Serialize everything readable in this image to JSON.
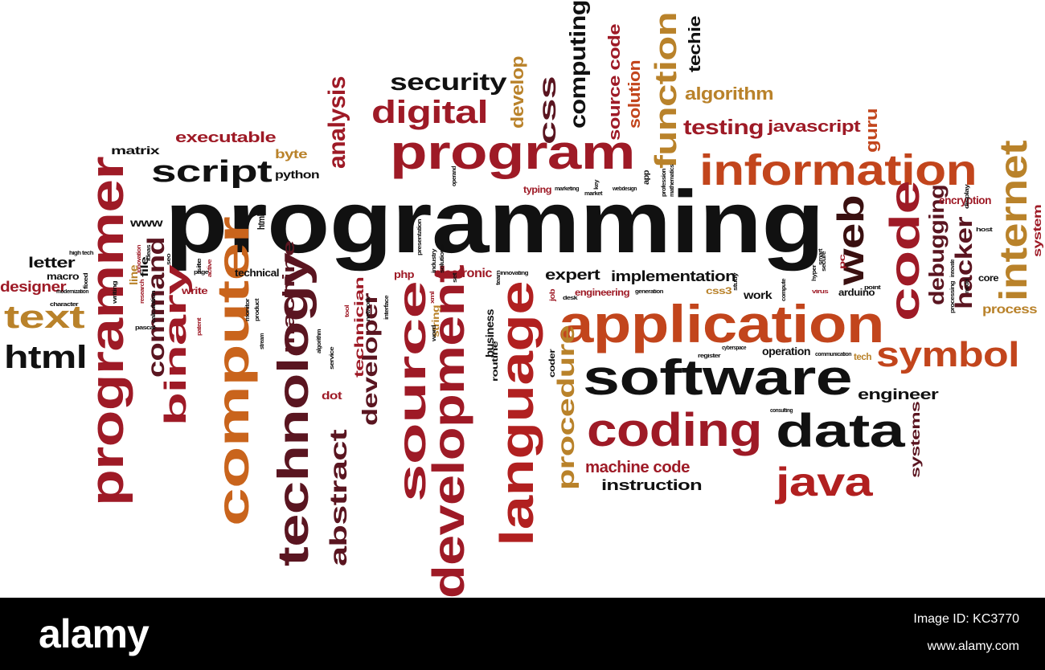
{
  "colors": {
    "black": "#111111",
    "darkbrown": "#3a1010",
    "maroon": "#5a1520",
    "crimson": "#9e1a26",
    "red": "#b12020",
    "orangered": "#c2451c",
    "orange": "#c9641c",
    "gold": "#b9822a"
  },
  "words": [
    {
      "text": "programming",
      "color": "black"
    },
    {
      "text": "application",
      "color": "orangered"
    },
    {
      "text": "software",
      "color": "black"
    },
    {
      "text": "information",
      "color": "orangered"
    },
    {
      "text": "program",
      "color": "crimson"
    },
    {
      "text": "coding",
      "color": "crimson"
    },
    {
      "text": "data",
      "color": "black"
    },
    {
      "text": "java",
      "color": "red"
    },
    {
      "text": "symbol",
      "color": "orangered"
    },
    {
      "text": "code",
      "color": "crimson"
    },
    {
      "text": "internet",
      "color": "gold"
    },
    {
      "text": "web",
      "color": "darkbrown"
    },
    {
      "text": "hacker",
      "color": "maroon"
    },
    {
      "text": "debugging",
      "color": "maroon"
    },
    {
      "text": "digital",
      "color": "crimson"
    },
    {
      "text": "security",
      "color": "black"
    },
    {
      "text": "script",
      "color": "black"
    },
    {
      "text": "text",
      "color": "gold"
    },
    {
      "text": "html",
      "color": "black"
    },
    {
      "text": "programmer",
      "color": "crimson"
    },
    {
      "text": "computer",
      "color": "orange"
    },
    {
      "text": "technology",
      "color": "maroon"
    },
    {
      "text": "binary",
      "color": "crimson"
    },
    {
      "text": "command",
      "color": "maroon"
    },
    {
      "text": "source",
      "color": "crimson"
    },
    {
      "text": "development",
      "color": "crimson"
    },
    {
      "text": "language",
      "color": "red"
    },
    {
      "text": "procedure",
      "color": "gold"
    },
    {
      "text": "abstract",
      "color": "maroon"
    },
    {
      "text": "developer",
      "color": "maroon"
    },
    {
      "text": "analysis",
      "color": "crimson"
    },
    {
      "text": "function",
      "color": "gold"
    },
    {
      "text": "computing",
      "color": "black"
    },
    {
      "text": "css",
      "color": "maroon"
    },
    {
      "text": "develop",
      "color": "gold"
    },
    {
      "text": "source code",
      "color": "crimson"
    },
    {
      "text": "solution",
      "color": "orangered"
    },
    {
      "text": "techie",
      "color": "black"
    },
    {
      "text": "algorithm",
      "color": "gold"
    },
    {
      "text": "testing",
      "color": "crimson"
    },
    {
      "text": "javascript",
      "color": "crimson"
    },
    {
      "text": "guru",
      "color": "orangered"
    },
    {
      "text": "executable",
      "color": "crimson"
    },
    {
      "text": "matrix",
      "color": "black"
    },
    {
      "text": "byte",
      "color": "gold"
    },
    {
      "text": "python",
      "color": "black"
    },
    {
      "text": "www",
      "color": "black"
    },
    {
      "text": "letter",
      "color": "black"
    },
    {
      "text": "macro",
      "color": "black"
    },
    {
      "text": "designer",
      "color": "crimson"
    },
    {
      "text": "implementation",
      "color": "black"
    },
    {
      "text": "expert",
      "color": "black"
    },
    {
      "text": "engineering",
      "color": "crimson"
    },
    {
      "text": "electronic",
      "color": "crimson"
    },
    {
      "text": "php",
      "color": "crimson"
    },
    {
      "text": "business",
      "color": "black"
    },
    {
      "text": "technician",
      "color": "crimson"
    },
    {
      "text": "machine",
      "color": "maroon"
    },
    {
      "text": "technical",
      "color": "black"
    },
    {
      "text": "machine code",
      "color": "crimson"
    },
    {
      "text": "instruction",
      "color": "black"
    },
    {
      "text": "engineer",
      "color": "black"
    },
    {
      "text": "systems",
      "color": "maroon"
    },
    {
      "text": "process",
      "color": "gold"
    },
    {
      "text": "system",
      "color": "crimson"
    },
    {
      "text": "encryption",
      "color": "crimson"
    },
    {
      "text": "arduino",
      "color": "black"
    },
    {
      "text": "operation",
      "color": "black"
    },
    {
      "text": "work",
      "color": "black"
    },
    {
      "text": "css3",
      "color": "gold"
    },
    {
      "text": "dot",
      "color": "crimson"
    },
    {
      "text": "write",
      "color": "crimson"
    },
    {
      "text": "typing",
      "color": "crimson"
    },
    {
      "text": "coder",
      "color": "black"
    },
    {
      "text": "routine",
      "color": "black"
    },
    {
      "text": "string",
      "color": "gold"
    },
    {
      "text": "html5",
      "color": "black"
    },
    {
      "text": "line",
      "color": "gold"
    },
    {
      "text": "file",
      "color": "black"
    },
    {
      "text": "core",
      "color": "black"
    },
    {
      "text": "pc",
      "color": "crimson"
    },
    {
      "text": "tech",
      "color": "gold"
    },
    {
      "text": "app",
      "color": "black"
    },
    {
      "text": "marketing",
      "color": "black"
    },
    {
      "text": "webdesign",
      "color": "black"
    },
    {
      "text": "operand",
      "color": "black"
    },
    {
      "text": "consulting",
      "color": "black"
    },
    {
      "text": "cyberspace",
      "color": "black"
    },
    {
      "text": "register",
      "color": "black"
    },
    {
      "text": "communication",
      "color": "black"
    },
    {
      "text": "generation",
      "color": "black"
    },
    {
      "text": "host",
      "color": "black"
    },
    {
      "text": "innovate",
      "color": "black"
    },
    {
      "text": "virus",
      "color": "crimson"
    },
    {
      "text": "point",
      "color": "black"
    },
    {
      "text": "site",
      "color": "black"
    },
    {
      "text": "stream",
      "color": "black"
    },
    {
      "text": "ideas",
      "color": "black"
    },
    {
      "text": "page",
      "color": "black"
    },
    {
      "text": "seo",
      "color": "black"
    },
    {
      "text": "active",
      "color": "crimson"
    },
    {
      "text": "patent",
      "color": "crimson"
    },
    {
      "text": "network",
      "color": "black"
    },
    {
      "text": "interface",
      "color": "black"
    },
    {
      "text": "word",
      "color": "black"
    },
    {
      "text": "research",
      "color": "crimson"
    },
    {
      "text": "writing",
      "color": "black"
    },
    {
      "text": "pascal",
      "color": "black"
    },
    {
      "text": "character",
      "color": "black"
    },
    {
      "text": "modernization",
      "color": "black"
    },
    {
      "text": "high tech",
      "color": "black"
    },
    {
      "text": "fixed",
      "color": "black"
    },
    {
      "text": "innovation",
      "color": "crimson"
    },
    {
      "text": "calculation",
      "color": "black"
    },
    {
      "text": "product",
      "color": "black"
    },
    {
      "text": "monitor",
      "color": "black"
    },
    {
      "text": "algorithm",
      "color": "black"
    },
    {
      "text": "service",
      "color": "black"
    },
    {
      "text": "tool",
      "color": "crimson"
    },
    {
      "text": "industry",
      "color": "black"
    },
    {
      "text": "solutions",
      "color": "black"
    },
    {
      "text": "presentation",
      "color": "black"
    },
    {
      "text": "xml",
      "color": "crimson"
    },
    {
      "text": "set",
      "color": "black"
    },
    {
      "text": "innovating",
      "color": "black"
    },
    {
      "text": "job",
      "color": "crimson"
    },
    {
      "text": "desk",
      "color": "black"
    },
    {
      "text": "key",
      "color": "black"
    },
    {
      "text": "market",
      "color": "black"
    },
    {
      "text": "profession",
      "color": "black"
    },
    {
      "text": "mathematics",
      "color": "black"
    },
    {
      "text": "compute",
      "color": "black"
    },
    {
      "text": "secure",
      "color": "black"
    },
    {
      "text": "study",
      "color": "black"
    },
    {
      "text": "smart",
      "color": "black"
    },
    {
      "text": "processing",
      "color": "black"
    },
    {
      "text": "model",
      "color": "black"
    },
    {
      "text": "hyper",
      "color": "black"
    },
    {
      "text": "display",
      "color": "black"
    },
    {
      "text": "team",
      "color": "black"
    }
  ],
  "footer": {
    "logo": "alamy",
    "image_id": "Image ID: KC3770",
    "site": "www.alamy.com"
  }
}
